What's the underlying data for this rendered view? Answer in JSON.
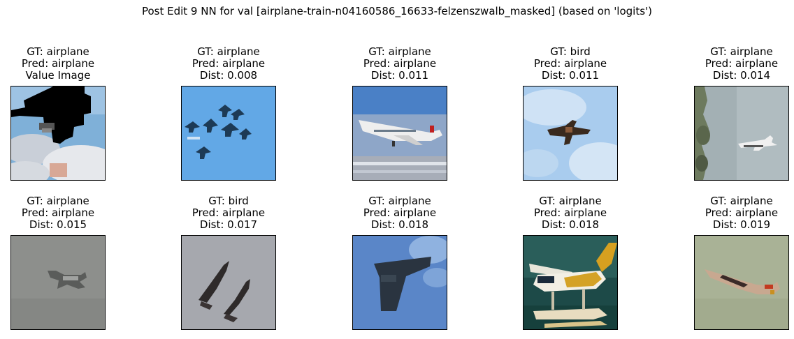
{
  "figure": {
    "title": "Post Edit 9 NN for val [airplane-train-n04160586_16633-felzenszwalb_masked] (based on 'logits')"
  },
  "panels": [
    {
      "lines": [
        "GT: airplane",
        "Pred: airplane",
        "Value Image"
      ],
      "image": "masked airplane in cloudy blue sky with black mask region"
    },
    {
      "lines": [
        "GT: airplane",
        "Pred: airplane",
        "Dist: 0.008"
      ],
      "image": "formation of fighter jets on blue sky"
    },
    {
      "lines": [
        "GT: airplane",
        "Pred: airplane",
        "Dist: 0.011"
      ],
      "image": "white airliner landing over runway"
    },
    {
      "lines": [
        "GT: bird",
        "Pred: airplane",
        "Dist: 0.011"
      ],
      "image": "small plane in light blue cloudy sky"
    },
    {
      "lines": [
        "GT: airplane",
        "Pred: airplane",
        "Dist: 0.014"
      ],
      "image": "jet in grey sky with trees at left"
    },
    {
      "lines": [
        "GT: airplane",
        "Pred: airplane",
        "Dist: 0.015"
      ],
      "image": "jet on grey sky"
    },
    {
      "lines": [
        "GT: bird",
        "Pred: airplane",
        "Dist: 0.017"
      ],
      "image": "two dark birds on grey sky"
    },
    {
      "lines": [
        "GT: airplane",
        "Pred: airplane",
        "Dist: 0.018"
      ],
      "image": "dark stealth bomber on blue sky"
    },
    {
      "lines": [
        "GT: airplane",
        "Pred: airplane",
        "Dist: 0.018"
      ],
      "image": "yellow and white seaplane over teal water"
    },
    {
      "lines": [
        "GT: airplane",
        "Pred: airplane",
        "Dist: 0.019"
      ],
      "image": "airliner on pale green sky"
    }
  ]
}
